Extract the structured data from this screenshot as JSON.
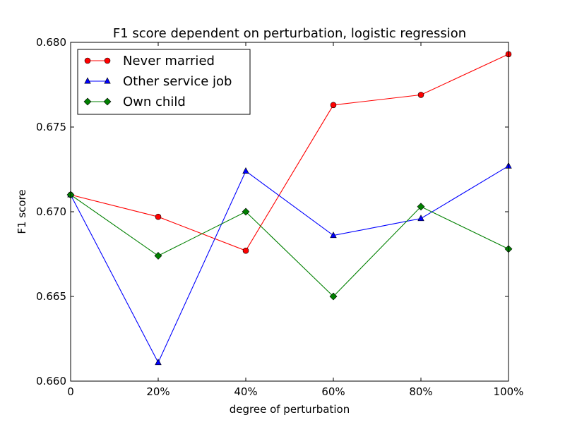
{
  "chart_data": {
    "type": "line",
    "title": "F1 score dependent on perturbation, logistic regression",
    "xlabel": "degree of perturbation",
    "ylabel": "F1 score",
    "x": [
      0,
      20,
      40,
      60,
      80,
      100
    ],
    "x_tick_labels": [
      "0",
      "20%",
      "40%",
      "60%",
      "80%",
      "100%"
    ],
    "xlim": [
      0,
      100
    ],
    "ylim": [
      0.66,
      0.68
    ],
    "y_ticks": [
      0.66,
      0.665,
      0.67,
      0.675,
      0.68
    ],
    "y_tick_labels": [
      "0.660",
      "0.665",
      "0.670",
      "0.675",
      "0.680"
    ],
    "grid": false,
    "legend_position": "top-left",
    "series": [
      {
        "name": "Never married",
        "color": "#ff0000",
        "marker": "circle",
        "values": [
          0.671,
          0.6697,
          0.6677,
          0.6763,
          0.6769,
          0.6793
        ]
      },
      {
        "name": "Other service job",
        "color": "#0000ff",
        "marker": "triangle",
        "values": [
          0.671,
          0.6611,
          0.6724,
          0.6686,
          0.6696,
          0.6727
        ]
      },
      {
        "name": "Own child",
        "color": "#008000",
        "marker": "diamond",
        "values": [
          0.671,
          0.6674,
          0.67,
          0.665,
          0.6703,
          0.6678
        ]
      }
    ]
  }
}
